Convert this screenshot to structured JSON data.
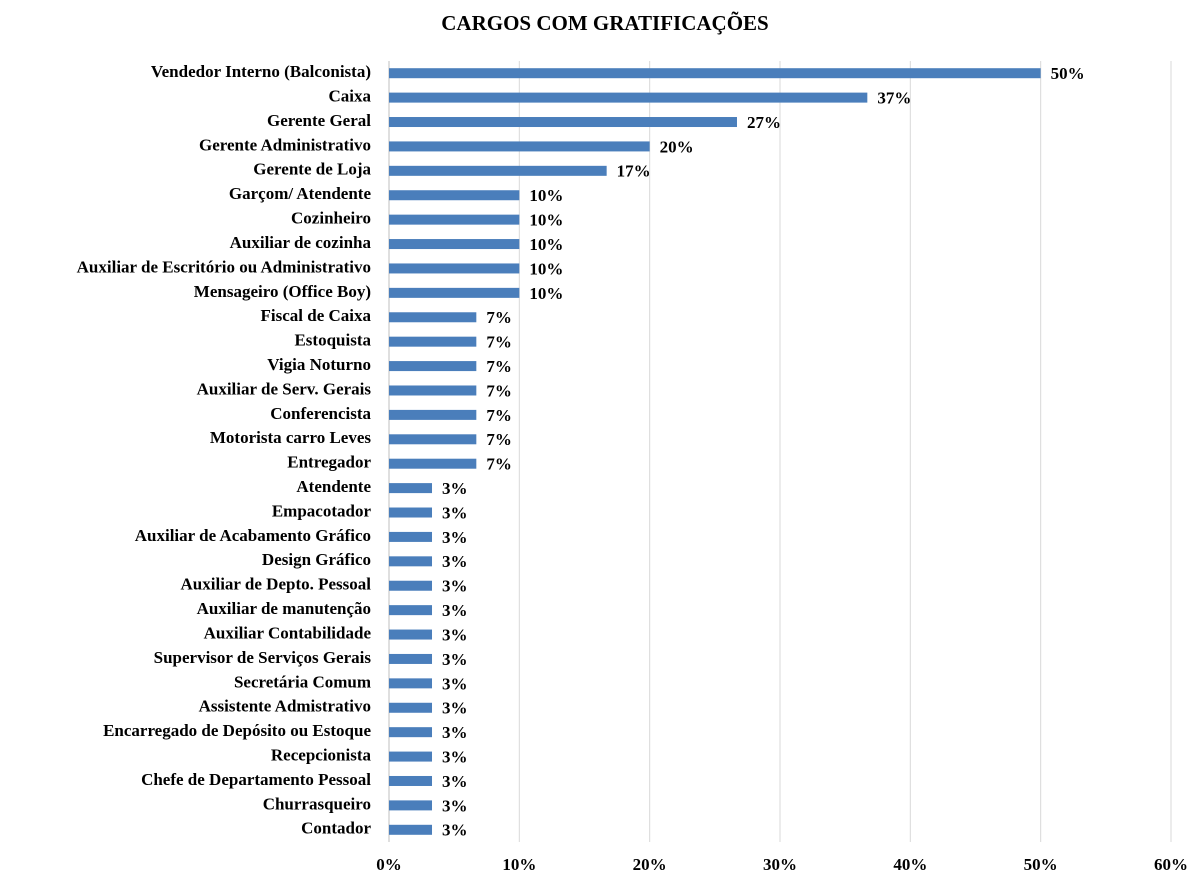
{
  "chart_data": {
    "type": "barh",
    "title": "CARGOS COM GRATIFICAÇÕES",
    "categories": [
      "Vendedor Interno (Balconista)",
      "Caixa",
      "Gerente Geral",
      "Gerente Administrativo",
      "Gerente de Loja",
      "Garçom/ Atendente",
      "Cozinheiro",
      "Auxiliar de cozinha",
      "Auxiliar de Escritório ou Administrativo",
      "Mensageiro (Office Boy)",
      "Fiscal de Caixa",
      "Estoquista",
      "Vigia Noturno",
      "Auxiliar de Serv. Gerais",
      "Conferencista",
      "Motorista carro Leves",
      "Entregador",
      "Atendente",
      "Empacotador",
      "Auxiliar de Acabamento Gráfico",
      "Design Gráfico",
      "Auxiliar de Depto. Pessoal",
      "Auxiliar de manutenção",
      "Auxiliar Contabilidade",
      "Supervisor de Serviços Gerais",
      "Secretária Comum",
      "Assistente Admistrativo",
      "Encarregado de Depósito ou Estoque",
      "Recepcionista",
      "Chefe de Departamento Pessoal",
      "Churrasqueiro",
      "Contador"
    ],
    "values": [
      50,
      36.7,
      26.7,
      20,
      16.7,
      10,
      10,
      10,
      10,
      10,
      6.7,
      6.7,
      6.7,
      6.7,
      6.7,
      6.7,
      6.7,
      3.3,
      3.3,
      3.3,
      3.3,
      3.3,
      3.3,
      3.3,
      3.3,
      3.3,
      3.3,
      3.3,
      3.3,
      3.3,
      3.3,
      3.3
    ],
    "value_labels": [
      "50%",
      "37%",
      "27%",
      "20%",
      "17%",
      "10%",
      "10%",
      "10%",
      "10%",
      "10%",
      "7%",
      "7%",
      "7%",
      "7%",
      "7%",
      "7%",
      "7%",
      "3%",
      "3%",
      "3%",
      "3%",
      "3%",
      "3%",
      "3%",
      "3%",
      "3%",
      "3%",
      "3%",
      "3%",
      "3%",
      "3%",
      "3%"
    ],
    "color": "#4a7ebb",
    "xlim": [
      0,
      60
    ],
    "xticks": [
      {
        "value": 0,
        "label": "0%"
      },
      {
        "value": 10,
        "label": "10%"
      },
      {
        "value": 20,
        "label": "20%"
      },
      {
        "value": 30,
        "label": "30%"
      },
      {
        "value": 40,
        "label": "40%"
      },
      {
        "value": 50,
        "label": "50%"
      },
      {
        "value": 60,
        "label": "60%"
      }
    ],
    "grid": true
  }
}
